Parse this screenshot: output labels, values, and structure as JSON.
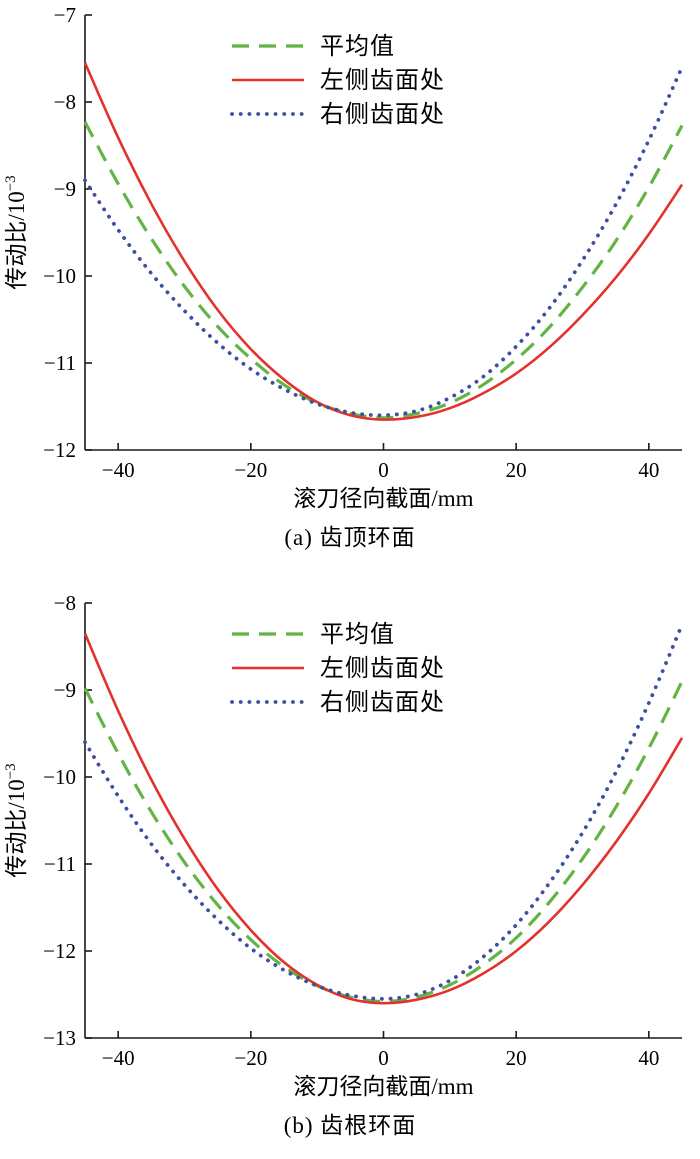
{
  "page": {
    "background": "#ffffff"
  },
  "chart_data": [
    {
      "id": "a",
      "type": "line",
      "caption": "(a) 齿顶环面",
      "xlabel": "滚刀径向截面/mm",
      "ylabel_base": "传动比/10",
      "ylabel_exp": "−3",
      "xlim": [
        -45,
        45
      ],
      "ylim": [
        -12,
        -7
      ],
      "xticks": [
        -40,
        -20,
        0,
        20,
        40
      ],
      "yticks": [
        -12,
        -11,
        -10,
        -9,
        -8,
        -7
      ],
      "grid": false,
      "legend_position": "top-inside",
      "x": [
        -45,
        -40,
        -35,
        -30,
        -25,
        -20,
        -15,
        -10,
        -5,
        0,
        5,
        10,
        15,
        20,
        25,
        30,
        35,
        40,
        45
      ],
      "series": [
        {
          "name": "平均值",
          "style": "dashed",
          "color": "#62b544",
          "values": [
            -8.23,
            -8.94,
            -9.57,
            -10.12,
            -10.58,
            -10.95,
            -11.25,
            -11.46,
            -11.58,
            -11.63,
            -11.58,
            -11.46,
            -11.25,
            -10.96,
            -10.59,
            -10.13,
            -9.6,
            -8.98,
            -8.27
          ]
        },
        {
          "name": "左侧齿面处",
          "style": "solid",
          "color": "#e4312b",
          "values": [
            -7.55,
            -8.41,
            -9.17,
            -9.83,
            -10.39,
            -10.84,
            -11.19,
            -11.45,
            -11.6,
            -11.65,
            -11.62,
            -11.52,
            -11.35,
            -11.12,
            -10.82,
            -10.45,
            -10.02,
            -9.52,
            -8.95
          ]
        },
        {
          "name": "右侧齿面处",
          "style": "dotted",
          "color": "#3d4fa1",
          "values": [
            -8.9,
            -9.47,
            -9.97,
            -10.4,
            -10.77,
            -11.07,
            -11.3,
            -11.47,
            -11.57,
            -11.6,
            -11.55,
            -11.4,
            -11.16,
            -10.81,
            -10.37,
            -9.82,
            -9.18,
            -8.44,
            -7.6
          ]
        }
      ]
    },
    {
      "id": "b",
      "type": "line",
      "caption": "(b) 齿根环面",
      "xlabel": "滚刀径向截面/mm",
      "ylabel_base": "传动比/10",
      "ylabel_exp": "−3",
      "xlim": [
        -45,
        45
      ],
      "ylim": [
        -13,
        -8
      ],
      "xticks": [
        -40,
        -20,
        0,
        20,
        40
      ],
      "yticks": [
        -13,
        -12,
        -11,
        -10,
        -9,
        -8
      ],
      "grid": false,
      "legend_position": "top-inside",
      "x": [
        -45,
        -40,
        -35,
        -30,
        -25,
        -20,
        -15,
        -10,
        -5,
        0,
        5,
        10,
        15,
        20,
        25,
        30,
        35,
        40,
        45
      ],
      "series": [
        {
          "name": "平均值",
          "style": "dashed",
          "color": "#62b544",
          "values": [
            -8.98,
            -9.73,
            -10.4,
            -10.98,
            -11.47,
            -11.87,
            -12.18,
            -12.4,
            -12.53,
            -12.58,
            -12.53,
            -12.39,
            -12.16,
            -11.85,
            -11.44,
            -10.94,
            -10.35,
            -9.67,
            -8.9
          ]
        },
        {
          "name": "左侧齿面处",
          "style": "solid",
          "color": "#e4312b",
          "values": [
            -8.35,
            -9.24,
            -10.03,
            -10.71,
            -11.29,
            -11.76,
            -12.13,
            -12.39,
            -12.55,
            -12.6,
            -12.56,
            -12.45,
            -12.26,
            -12.0,
            -11.66,
            -11.24,
            -10.75,
            -10.19,
            -9.55
          ]
        },
        {
          "name": "右侧齿面处",
          "style": "dotted",
          "color": "#3d4fa1",
          "values": [
            -9.6,
            -10.22,
            -10.77,
            -11.24,
            -11.64,
            -11.97,
            -12.22,
            -12.4,
            -12.51,
            -12.55,
            -12.5,
            -12.34,
            -12.07,
            -11.7,
            -11.22,
            -10.64,
            -9.95,
            -9.15,
            -8.25
          ]
        }
      ]
    }
  ]
}
